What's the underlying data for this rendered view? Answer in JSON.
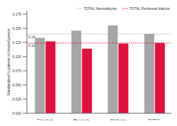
{
  "chart_data": {
    "type": "bar",
    "y_label": "Standardized % patients w/ insured person",
    "categories": [
      "Flanders",
      "Brussels",
      "Wallonia",
      "TOTAL"
    ],
    "series": [
      {
        "name": "Hemodialysis",
        "color": "#a6a6a6",
        "values": [
          0.133,
          0.146,
          0.155,
          0.14
        ]
      },
      {
        "name": "Peritoneal dialysis",
        "color": "#e0103f",
        "values": [
          0.127,
          0.114,
          0.123,
          0.124
        ]
      }
    ],
    "reference_lines": [
      {
        "name": "TOTAL Hemodialysis",
        "value": 0.14,
        "label": "0.14",
        "color": "#a6a6a6",
        "line_style": "dotted"
      },
      {
        "name": "TOTAL Peritoneal dialysis",
        "value": 0.124,
        "label": "0.12",
        "color": "#e0103f",
        "line_style": "dotted"
      }
    ],
    "ylim": [
      0,
      0.18
    ],
    "yticks": [
      {
        "value": 0,
        "label": "0.000"
      },
      {
        "value": 0.025,
        "label": "0.025"
      },
      {
        "value": 0.05,
        "label": "0.050"
      },
      {
        "value": 0.075,
        "label": "0.075"
      },
      {
        "value": 0.1,
        "label": "0.100"
      },
      {
        "value": 0.125,
        "label": "0.125"
      },
      {
        "value": 0.15,
        "label": "0.150"
      },
      {
        "value": 0.175,
        "label": "0.175"
      }
    ],
    "grid": false,
    "legend": "top-right"
  }
}
